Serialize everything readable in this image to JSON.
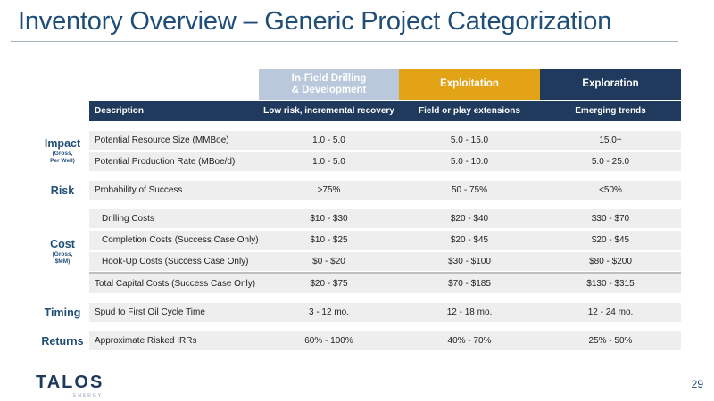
{
  "title": "Inventory Overview – Generic Project Categorization",
  "columns": [
    {
      "label": "In-Field Drilling\n& Development"
    },
    {
      "label": "Exploitation"
    },
    {
      "label": "Exploration"
    }
  ],
  "subheader": {
    "description": "Description",
    "col1": "Low risk, incremental recovery",
    "col2": "Field or play extensions",
    "col3": "Emerging trends"
  },
  "categories": {
    "impact": {
      "label": "Impact",
      "sub": "(Gross,\nPer Well)"
    },
    "risk": {
      "label": "Risk"
    },
    "cost": {
      "label": "Cost",
      "sub": "(Gross,\n$MM)"
    },
    "timing": {
      "label": "Timing"
    },
    "returns": {
      "label": "Returns"
    }
  },
  "rows": [
    {
      "desc": "Potential Resource Size (MMBoe)",
      "v": [
        "1.0 - 5.0",
        "5.0 - 15.0",
        "15.0+"
      ]
    },
    {
      "desc": "Potential Production Rate (MBoe/d)",
      "v": [
        "1.0 - 5.0",
        "5.0 - 10.0",
        "5.0 - 25.0"
      ]
    },
    {
      "desc": "Probability of Success",
      "v": [
        ">75%",
        "50 - 75%",
        "<50%"
      ]
    },
    {
      "desc": "Drilling Costs",
      "v": [
        "$10 - $30",
        "$20 - $40",
        "$30 - $70"
      ]
    },
    {
      "desc": "Completion Costs (Success Case Only)",
      "v": [
        "$10 - $25",
        "$20 - $45",
        "$20 - $45"
      ]
    },
    {
      "desc": "Hook-Up Costs (Success Case Only)",
      "v": [
        "$0 - $20",
        "$30 - $100",
        "$80 - $200"
      ]
    },
    {
      "desc": "Total Capital Costs (Success Case Only)",
      "v": [
        "$20 - $75",
        "$70 - $185",
        "$130 - $315"
      ]
    },
    {
      "desc": "Spud to First Oil Cycle Time",
      "v": [
        "3 - 12 mo.",
        "12 - 18 mo.",
        "12 - 24 mo."
      ]
    },
    {
      "desc": "Approximate Risked IRRs",
      "v": [
        "60% - 100%",
        "40% - 70%",
        "25% - 50%"
      ]
    }
  ],
  "logo": {
    "word": "TALOS",
    "sub": "ENERGY"
  },
  "page_number": "29"
}
